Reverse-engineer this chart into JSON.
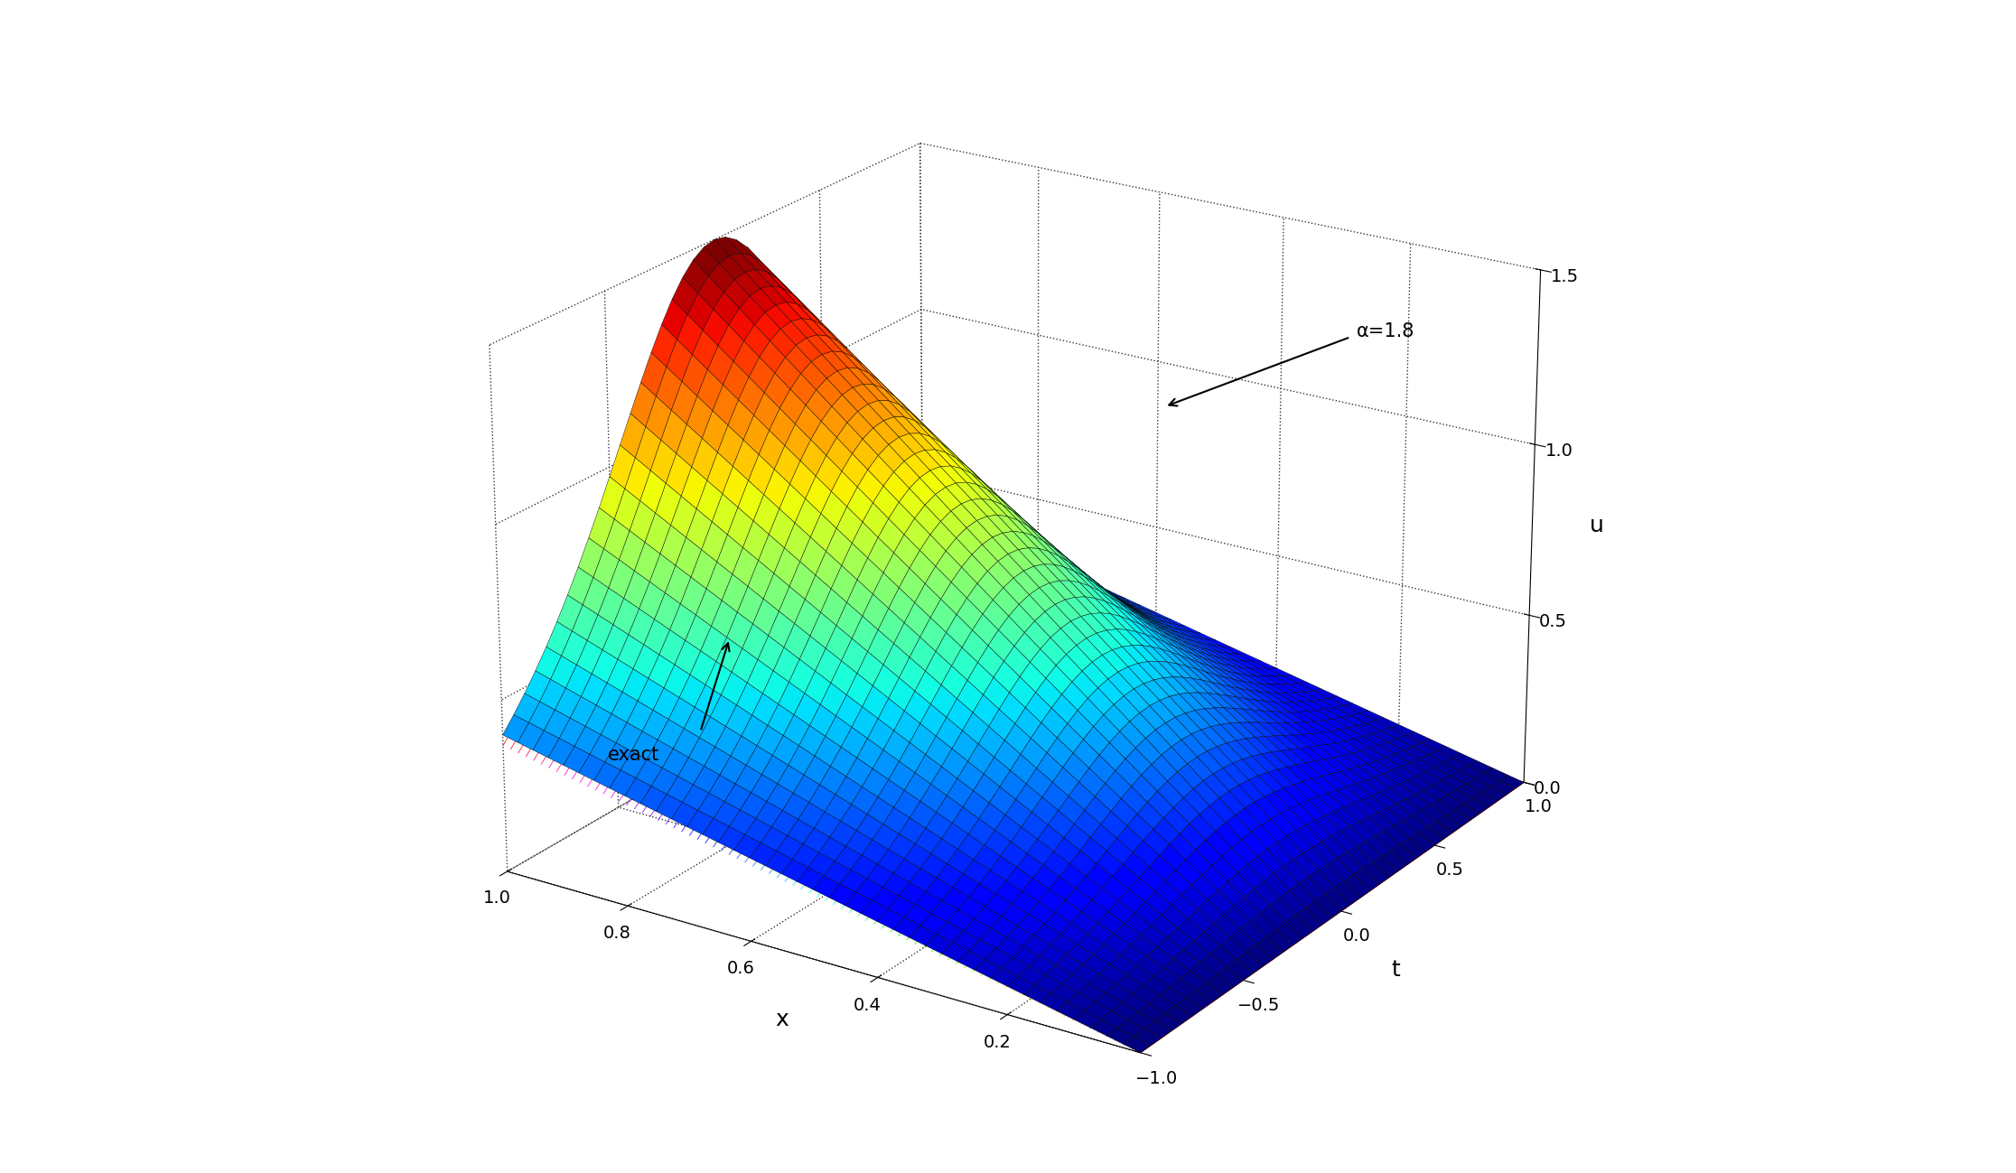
{
  "x_range": [
    0,
    1
  ],
  "t_range": [
    -1,
    1
  ],
  "u_range": [
    0,
    1.5
  ],
  "n_surface": 40,
  "n_exact_lines": 80,
  "xlabel": "x",
  "ylabel": "t",
  "zlabel": "u",
  "annotation_ham": "α=1.8",
  "annotation_exact": "exact",
  "zticks": [
    0,
    0.5,
    1.0,
    1.5
  ],
  "xticks": [
    0.2,
    0.4,
    0.6,
    0.8,
    1.0
  ],
  "yticks": [
    -1,
    -0.5,
    0,
    0.5,
    1
  ],
  "background_color": "#ffffff",
  "elev": 22,
  "azim": -57,
  "ham_scale": 1.5,
  "exact_scale": 1.0
}
